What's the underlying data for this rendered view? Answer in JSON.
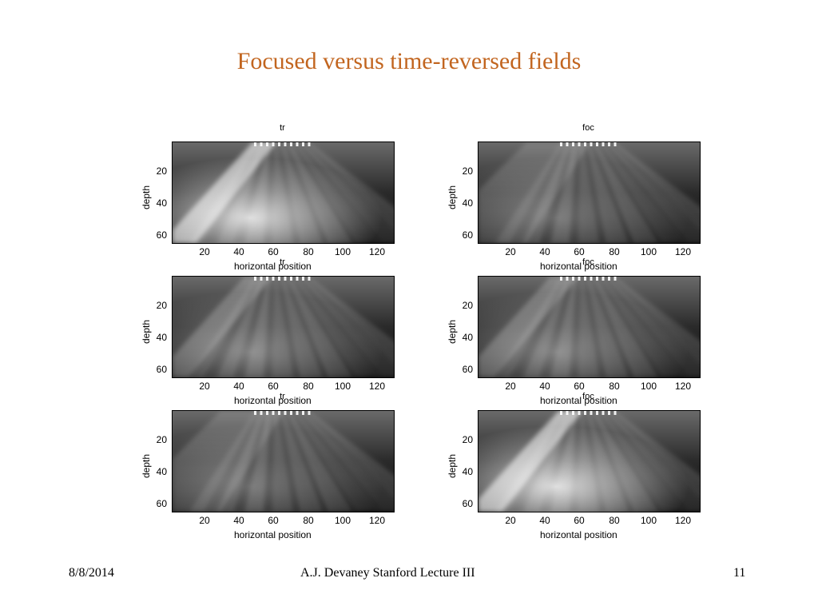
{
  "slide": {
    "title": "Focused versus time-reversed fields",
    "footer_date": "8/8/2014",
    "footer_center": "A.J. Devaney Stanford Lecture III",
    "footer_page": "11"
  },
  "axes": {
    "xlabel": "horizontal position",
    "ylabel": "depth",
    "xticks": [
      "20",
      "40",
      "60",
      "80",
      "100",
      "120"
    ],
    "yticks": [
      "20",
      "40",
      "60"
    ]
  },
  "panels": [
    {
      "title": "tr",
      "beam": "left-strong"
    },
    {
      "title": "foc",
      "beam": "diffuse"
    },
    {
      "title": "tr",
      "beam": "left-medium"
    },
    {
      "title": "foc",
      "beam": "left-medium"
    },
    {
      "title": "tr",
      "beam": "diffuse"
    },
    {
      "title": "foc",
      "beam": "left-strong"
    }
  ]
}
